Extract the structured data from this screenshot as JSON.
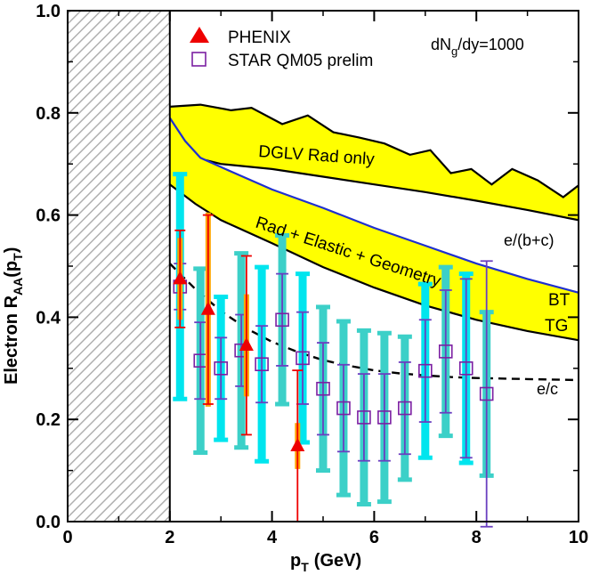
{
  "chart_data": {
    "type": "line",
    "xlabel": "p",
    "xlabel_sub": "T",
    "xlabel_unit": "(GeV)",
    "ylabel": "Electron R",
    "ylabel_sub": "AA",
    "ylabel_arg": "(p",
    "ylabel_arg_sub": "T",
    "ylabel_close": ")",
    "xlim": [
      0,
      10
    ],
    "ylim": [
      0,
      1.0
    ],
    "x_ticks": [
      "0",
      "2",
      "4",
      "6",
      "8",
      "10"
    ],
    "y_ticks": [
      "0.0",
      "0.2",
      "0.4",
      "0.6",
      "0.8",
      "1.0"
    ],
    "excluded_region": [
      0,
      2
    ],
    "legend": [
      {
        "name": "PHENIX",
        "marker": "filled-triangle",
        "color": "#ee0000"
      },
      {
        "name": "STAR QM05 prelim",
        "marker": "open-square",
        "color": "#7b1fa2"
      }
    ],
    "annotation": {
      "text": "dN",
      "sub": "g",
      "rest": "/dy=1000"
    },
    "bands": [
      {
        "name": "DGLV Rad only",
        "upper": [
          [
            2,
            0.812
          ],
          [
            2.6,
            0.816
          ],
          [
            3.2,
            0.805
          ],
          [
            3.6,
            0.81
          ],
          [
            4.2,
            0.778
          ],
          [
            4.7,
            0.795
          ],
          [
            5.2,
            0.762
          ],
          [
            5.7,
            0.752
          ],
          [
            6.2,
            0.74
          ],
          [
            6.7,
            0.718
          ],
          [
            7.1,
            0.727
          ],
          [
            7.5,
            0.682
          ],
          [
            7.9,
            0.69
          ],
          [
            8.3,
            0.66
          ],
          [
            8.7,
            0.69
          ],
          [
            9.2,
            0.668
          ],
          [
            9.7,
            0.635
          ],
          [
            10,
            0.658
          ]
        ],
        "lower": [
          [
            2,
            0.79
          ],
          [
            2.2,
            0.755
          ],
          [
            2.6,
            0.71
          ],
          [
            3,
            0.7
          ],
          [
            4,
            0.69
          ],
          [
            5,
            0.675
          ],
          [
            6,
            0.66
          ],
          [
            7,
            0.645
          ],
          [
            8,
            0.628
          ],
          [
            9,
            0.61
          ],
          [
            10,
            0.59
          ]
        ]
      },
      {
        "name": "Rad + Elastic + Geometry",
        "upper": [
          [
            2,
            0.79
          ],
          [
            2.3,
            0.745
          ],
          [
            2.6,
            0.712
          ],
          [
            3.2,
            0.685
          ],
          [
            4,
            0.65
          ],
          [
            5,
            0.614
          ],
          [
            6,
            0.575
          ],
          [
            7,
            0.54
          ],
          [
            8,
            0.505
          ],
          [
            9,
            0.475
          ],
          [
            10,
            0.448
          ]
        ],
        "lower": [
          [
            2,
            0.66
          ],
          [
            2.5,
            0.622
          ],
          [
            3,
            0.59
          ],
          [
            4,
            0.545
          ],
          [
            5,
            0.498
          ],
          [
            6,
            0.458
          ],
          [
            7,
            0.423
          ],
          [
            8,
            0.395
          ],
          [
            9,
            0.373
          ],
          [
            10,
            0.355
          ]
        ]
      }
    ],
    "band_label_1": "DGLV Rad only",
    "band_label_2": "Rad + Elastic + Geometry",
    "curve_labels": {
      "bc": "e/(b+c)",
      "c": "e/c",
      "bt": "BT",
      "tg": "TG"
    },
    "ec_curve": [
      [
        2,
        0.505
      ],
      [
        2.5,
        0.455
      ],
      [
        3,
        0.412
      ],
      [
        3.5,
        0.378
      ],
      [
        4,
        0.352
      ],
      [
        4.5,
        0.332
      ],
      [
        5,
        0.316
      ],
      [
        5.5,
        0.305
      ],
      [
        6,
        0.296
      ],
      [
        6.5,
        0.29
      ],
      [
        7,
        0.286
      ],
      [
        7.5,
        0.283
      ],
      [
        8,
        0.281
      ],
      [
        8.5,
        0.28
      ],
      [
        9,
        0.279
      ],
      [
        10,
        0.277
      ]
    ],
    "star_points": [
      {
        "x": 2.2,
        "y": 0.46,
        "stat": 0.045,
        "sys": 0.22
      },
      {
        "x": 2.6,
        "y": 0.315,
        "stat": 0.075,
        "sys": 0.18
      },
      {
        "x": 3.0,
        "y": 0.3,
        "stat": 0.06,
        "sys": 0.14
      },
      {
        "x": 3.4,
        "y": 0.335,
        "stat": 0.07,
        "sys": 0.19
      },
      {
        "x": 3.8,
        "y": 0.308,
        "stat": 0.075,
        "sys": 0.19
      },
      {
        "x": 4.2,
        "y": 0.395,
        "stat": 0.09,
        "sys": 0.165
      },
      {
        "x": 4.6,
        "y": 0.32,
        "stat": 0.09,
        "sys": 0.165
      },
      {
        "x": 5.0,
        "y": 0.26,
        "stat": 0.09,
        "sys": 0.16
      },
      {
        "x": 5.4,
        "y": 0.222,
        "stat": 0.085,
        "sys": 0.17
      },
      {
        "x": 5.8,
        "y": 0.204,
        "stat": 0.085,
        "sys": 0.17
      },
      {
        "x": 6.2,
        "y": 0.204,
        "stat": 0.085,
        "sys": 0.165
      },
      {
        "x": 6.6,
        "y": 0.222,
        "stat": 0.09,
        "sys": 0.14
      },
      {
        "x": 7.0,
        "y": 0.295,
        "stat": 0.1,
        "sys": 0.17
      },
      {
        "x": 7.4,
        "y": 0.333,
        "stat": 0.12,
        "sys": 0.165
      },
      {
        "x": 7.8,
        "y": 0.3,
        "stat": 0.175,
        "sys": 0.185
      },
      {
        "x": 8.2,
        "y": 0.25,
        "stat": 0.26,
        "sys": 0.16
      }
    ],
    "phenix_points": [
      {
        "x": 2.2,
        "y": 0.475,
        "stat": 0.095,
        "sys": 0.08
      },
      {
        "x": 2.75,
        "y": 0.415,
        "stat": 0.185,
        "sys": 0.19
      },
      {
        "x": 3.5,
        "y": 0.345,
        "stat": 0.175,
        "sys": 0.1
      },
      {
        "x": 4.5,
        "y": 0.148,
        "stat": 0.148,
        "sys": 0.045
      }
    ]
  },
  "colors": {
    "band_fill": "#ffff00",
    "star_sys": "#00e5ee",
    "star_sys_alt": "#3cd0c8",
    "star_stat": "#6a3fc0",
    "phenix": "#ee0000",
    "phenix_sys": "#ffa500",
    "bt_curve": "#1f2fd0"
  }
}
